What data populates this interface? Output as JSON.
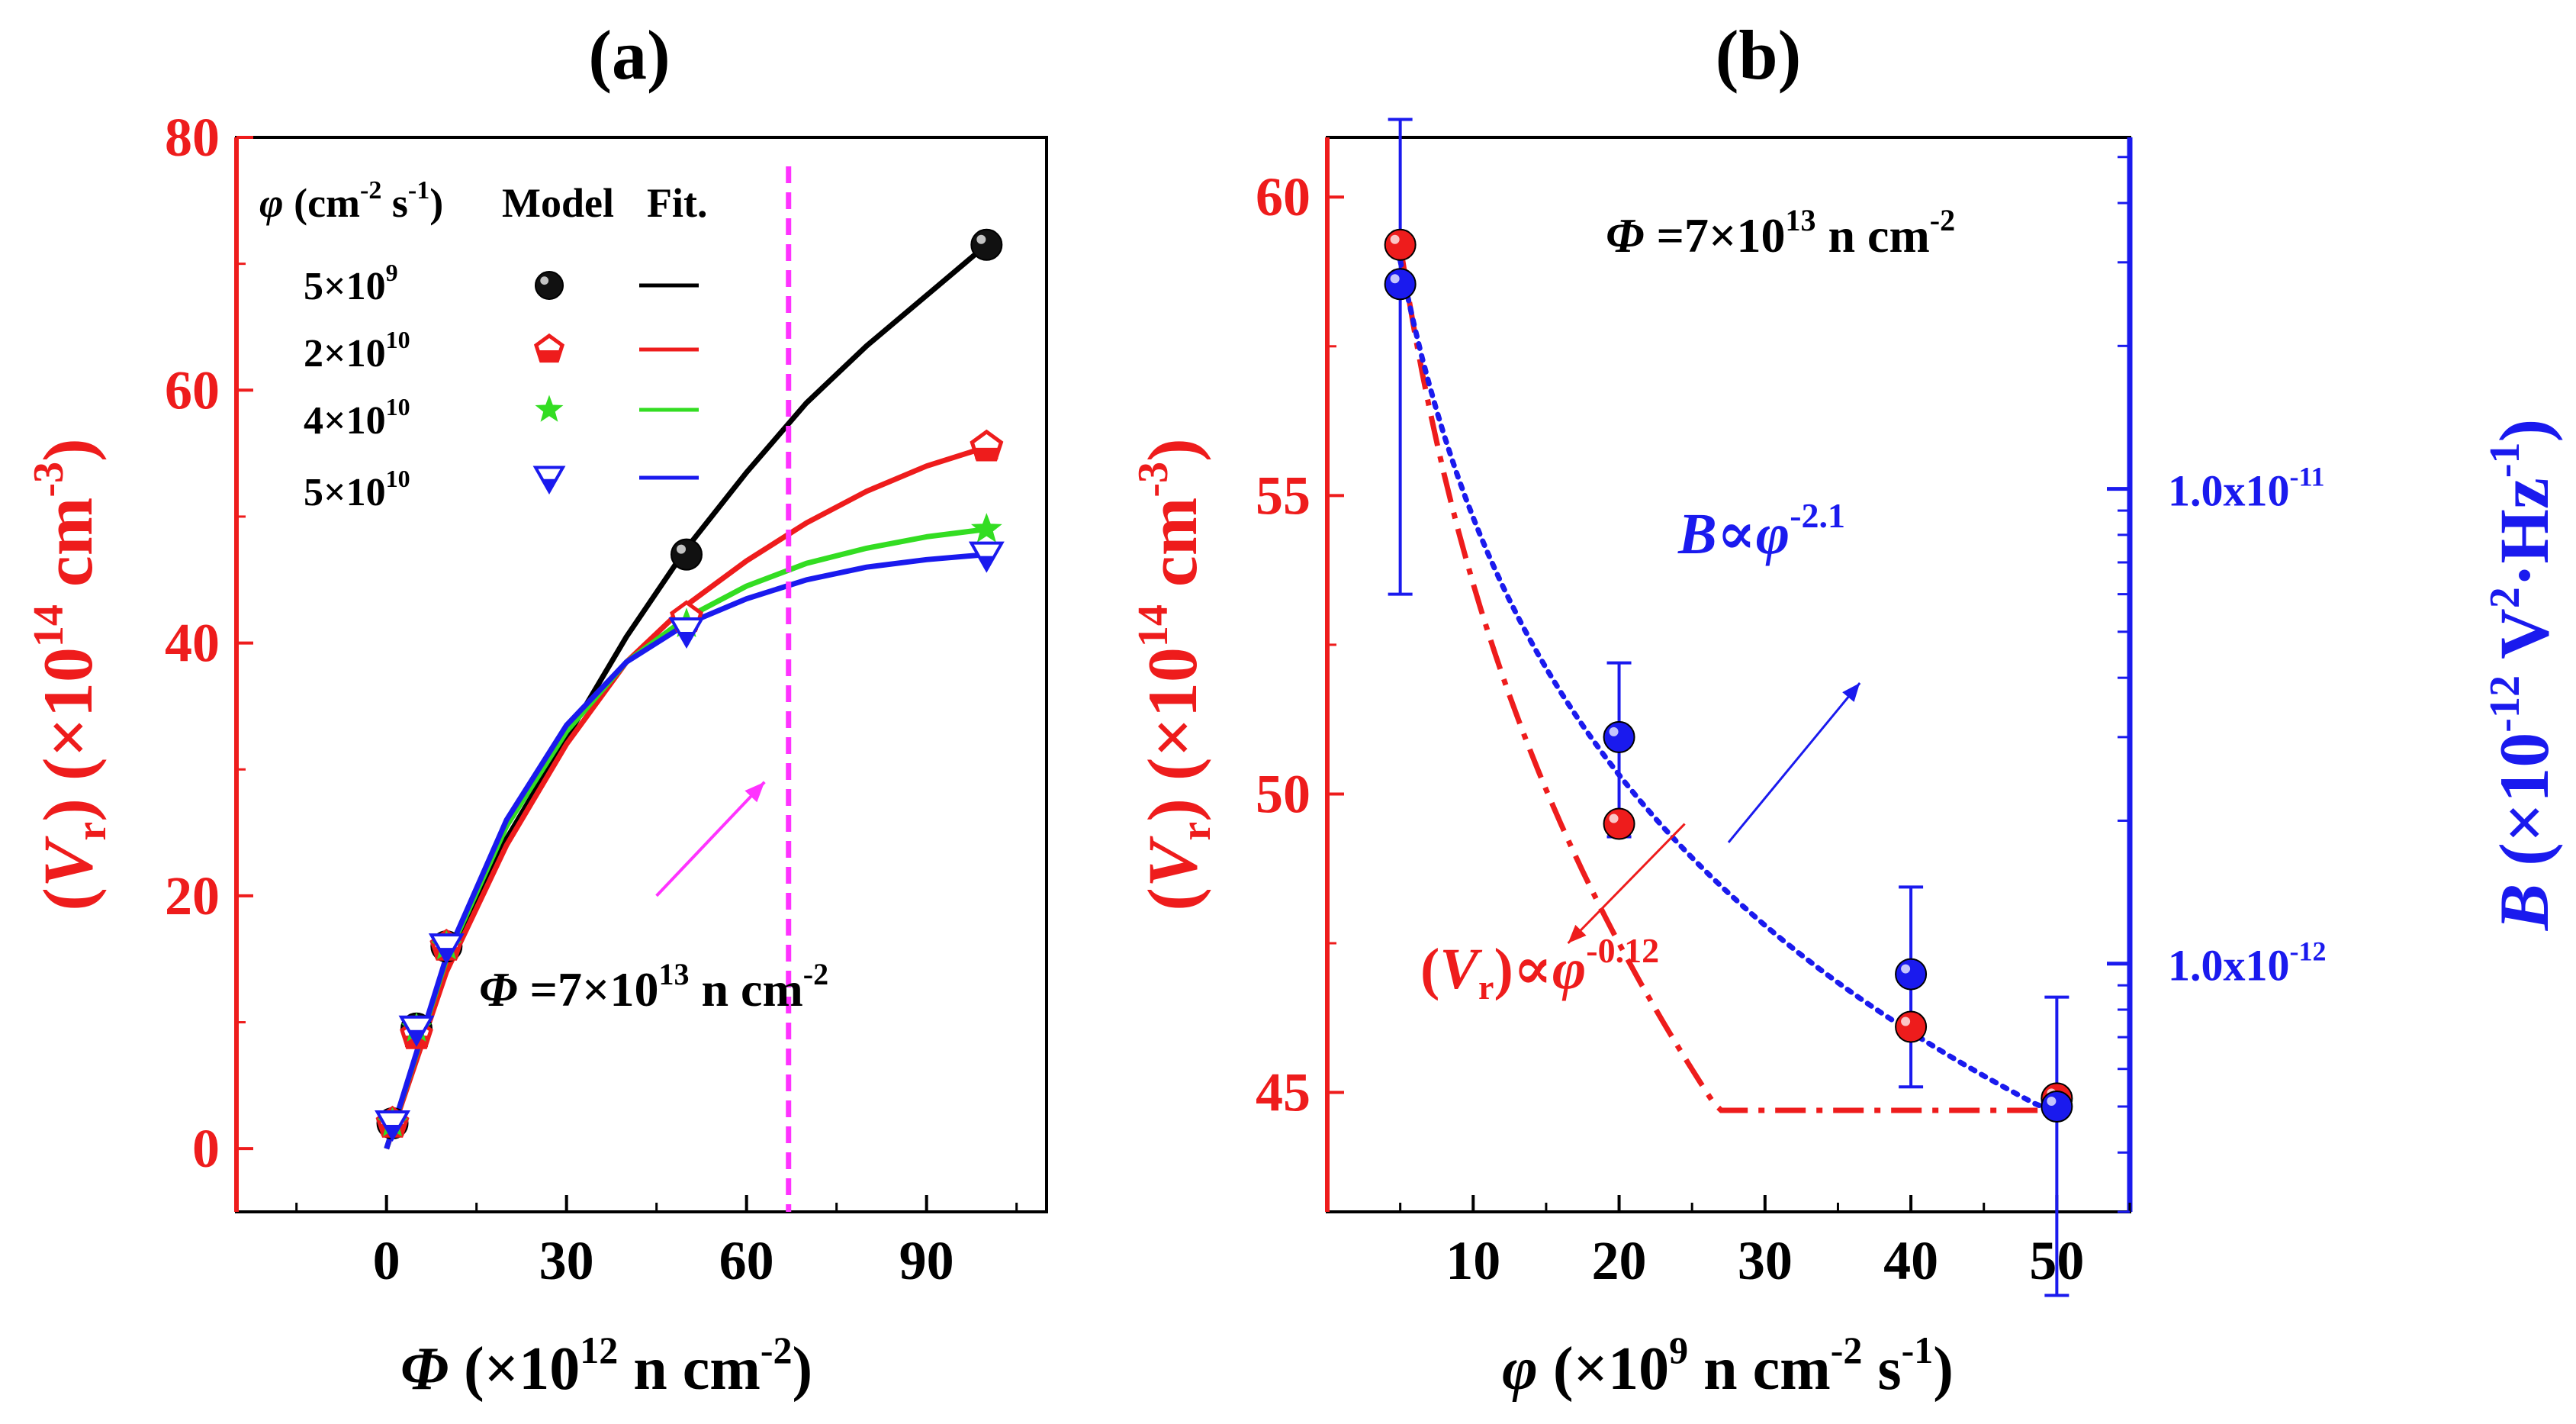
{
  "colors": {
    "black": "#000000",
    "red": "#ee1c1c",
    "green": "#33dd22",
    "blue": "#1a1aee",
    "magenta": "#ff33ff",
    "axis_red": "#ee1c1c",
    "axis_blue": "#1a1aee"
  },
  "chart_data": [
    {
      "id": "a",
      "panel_label": "(a)",
      "type": "scatter",
      "xlabel": {
        "sym": "Φ",
        "pre": " (×10",
        "sup": "12",
        "post": " n cm",
        "sup2": "-2",
        "close": ")"
      },
      "ylabel": {
        "open": "(",
        "sym": "V",
        "sub": "r",
        "mid": ") (×10",
        "sup": "14",
        "post": " cm",
        "sup2": "-3",
        "close": ")"
      },
      "xlim": [
        -25,
        110
      ],
      "ylim": [
        -5,
        80
      ],
      "xticks": [
        0,
        30,
        60,
        90
      ],
      "yticks": [
        0,
        20,
        40,
        60,
        80
      ],
      "xtick_labels": [
        "0",
        "30",
        "60",
        "90"
      ],
      "ytick_labels": [
        "0",
        "20",
        "40",
        "60",
        "80"
      ],
      "legend": {
        "position": "top-left",
        "header_sym": "φ",
        "header_pre": " (cm",
        "header_sup": "-2",
        "header_mid": " s",
        "header_sup2": "-1",
        "header_close": ")",
        "col_model": "Model",
        "col_fit": "Fit.",
        "entries": [
          {
            "base": "5×10",
            "exp": "9",
            "color": "#000000",
            "marker": "sphere"
          },
          {
            "base": "2×10",
            "exp": "10",
            "color": "#ee1c1c",
            "marker": "pentagon"
          },
          {
            "base": "4×10",
            "exp": "10",
            "color": "#33dd22",
            "marker": "star"
          },
          {
            "base": "5×10",
            "exp": "10",
            "color": "#1a1aee",
            "marker": "triangle-down"
          }
        ]
      },
      "series": [
        {
          "name": "5×10^9",
          "color": "#000000",
          "marker": "sphere",
          "x": [
            1,
            5,
            10,
            50,
            100
          ],
          "y": [
            2,
            9.5,
            16,
            47,
            71.5
          ],
          "fit_x": [
            0,
            10,
            20,
            30,
            40,
            50,
            60,
            70,
            80,
            90,
            100
          ],
          "fit_y": [
            0,
            14.5,
            24.5,
            32.5,
            40.5,
            47.5,
            53.5,
            59,
            63.5,
            67.5,
            71.5
          ]
        },
        {
          "name": "2×10^10",
          "color": "#ee1c1c",
          "marker": "pentagon",
          "x": [
            1,
            5,
            10,
            50,
            100
          ],
          "y": [
            2,
            9,
            16,
            42,
            55.5
          ],
          "fit_x": [
            0,
            10,
            20,
            30,
            40,
            50,
            60,
            70,
            80,
            90,
            100
          ],
          "fit_y": [
            0,
            14,
            24,
            32,
            38.5,
            43,
            46.5,
            49.5,
            52,
            54,
            55.5
          ]
        },
        {
          "name": "4×10^10",
          "color": "#33dd22",
          "marker": "star",
          "x": [
            1,
            5,
            10,
            50,
            100
          ],
          "y": [
            2,
            9.5,
            16,
            41.5,
            49
          ],
          "fit_x": [
            0,
            10,
            20,
            30,
            40,
            50,
            60,
            70,
            80,
            90,
            100
          ],
          "fit_y": [
            0,
            15,
            25.5,
            33,
            38.5,
            42,
            44.5,
            46.3,
            47.5,
            48.4,
            49
          ]
        },
        {
          "name": "5×10^10",
          "color": "#1a1aee",
          "marker": "triangle-down",
          "x": [
            1,
            5,
            10,
            50,
            100
          ],
          "y": [
            2,
            9.5,
            16,
            41,
            47
          ],
          "fit_x": [
            0,
            10,
            20,
            30,
            40,
            50,
            60,
            70,
            80,
            90,
            100
          ],
          "fit_y": [
            0,
            15.2,
            26,
            33.5,
            38.5,
            41.5,
            43.5,
            45,
            46,
            46.6,
            47
          ]
        }
      ],
      "vline": {
        "x": 67,
        "color": "#ff33ff",
        "style": "dashed"
      },
      "annotation": {
        "sym": "Φ",
        "pre": " =7×10",
        "sup": "13",
        "post": " n cm",
        "sup2": "-2",
        "arrow_from": [
          45,
          20
        ],
        "arrow_to": [
          63,
          29
        ]
      }
    },
    {
      "id": "b",
      "panel_label": "(b)",
      "type": "scatter",
      "xlabel": {
        "sym": "φ",
        "pre": " (×10",
        "sup": "9",
        "post": " n cm",
        "sup2": "-2",
        "mid": " s",
        "sup3": "-1",
        "close": ")"
      },
      "ylabel_left": {
        "open": "(",
        "sym": "V",
        "sub": "r",
        "mid": ") (×10",
        "sup": "14",
        "post": " cm",
        "sup2": "-3",
        "close": ")"
      },
      "ylabel_right": {
        "sym": "B",
        "pre": " (×10",
        "sup": "-12",
        "mid": " V",
        "sup2": "2",
        "post": "·Hz",
        "sup3": "-1",
        "close": ")"
      },
      "xlim": [
        0,
        55
      ],
      "ylim_left": [
        43,
        61
      ],
      "ylim_right_log": [
        3e-13,
        5.5e-11
      ],
      "xticks": [
        10,
        20,
        30,
        40,
        50
      ],
      "xtick_labels": [
        "10",
        "20",
        "30",
        "40",
        "50"
      ],
      "yticks_left": [
        45,
        50,
        55,
        60
      ],
      "ytick_labels_left": [
        "45",
        "50",
        "55",
        "60"
      ],
      "yticks_right": [
        1e-12,
        1e-11
      ],
      "ytick_labels_right": [
        "1.0x10",
        "1.0x10"
      ],
      "ytick_label_exps_right": [
        "-12",
        "-11"
      ],
      "series_left": {
        "name": "<Vr>",
        "color": "#ee1c1c",
        "x": [
          5,
          20,
          40,
          50
        ],
        "y": [
          59.2,
          49.5,
          46.1,
          44.9
        ],
        "fit_exponent": -0.12,
        "fit_x_range": [
          5,
          50
        ],
        "fit_style": "dash-dot"
      },
      "series_right": {
        "name": "B",
        "color": "#1a1aee",
        "x": [
          5,
          20,
          40,
          50
        ],
        "y": [
          2.7e-11,
          3e-12,
          9.5e-13,
          5e-13
        ],
        "err_low": [
          6e-12,
          1.85e-12,
          5.5e-13,
          2e-13
        ],
        "err_high": [
          6e-11,
          4.3e-12,
          1.45e-12,
          8.5e-13
        ],
        "fit_exponent": -2.1,
        "fit_x_range": [
          5,
          50
        ],
        "fit_style": "dotted"
      },
      "annotation_top": {
        "sym": "Φ",
        "pre": " =7×10",
        "sup": "13",
        "post": " n cm",
        "sup2": "-2"
      },
      "annotation_B": {
        "sym": "B",
        "mid": "∝",
        "sym2": "φ",
        "sup": "-2.1"
      },
      "annotation_Vr": {
        "open": "(",
        "sym": "V",
        "sub": "r",
        "close": ")",
        "mid": "∝",
        "sym2": "φ",
        "sup": "-0.12"
      }
    }
  ]
}
